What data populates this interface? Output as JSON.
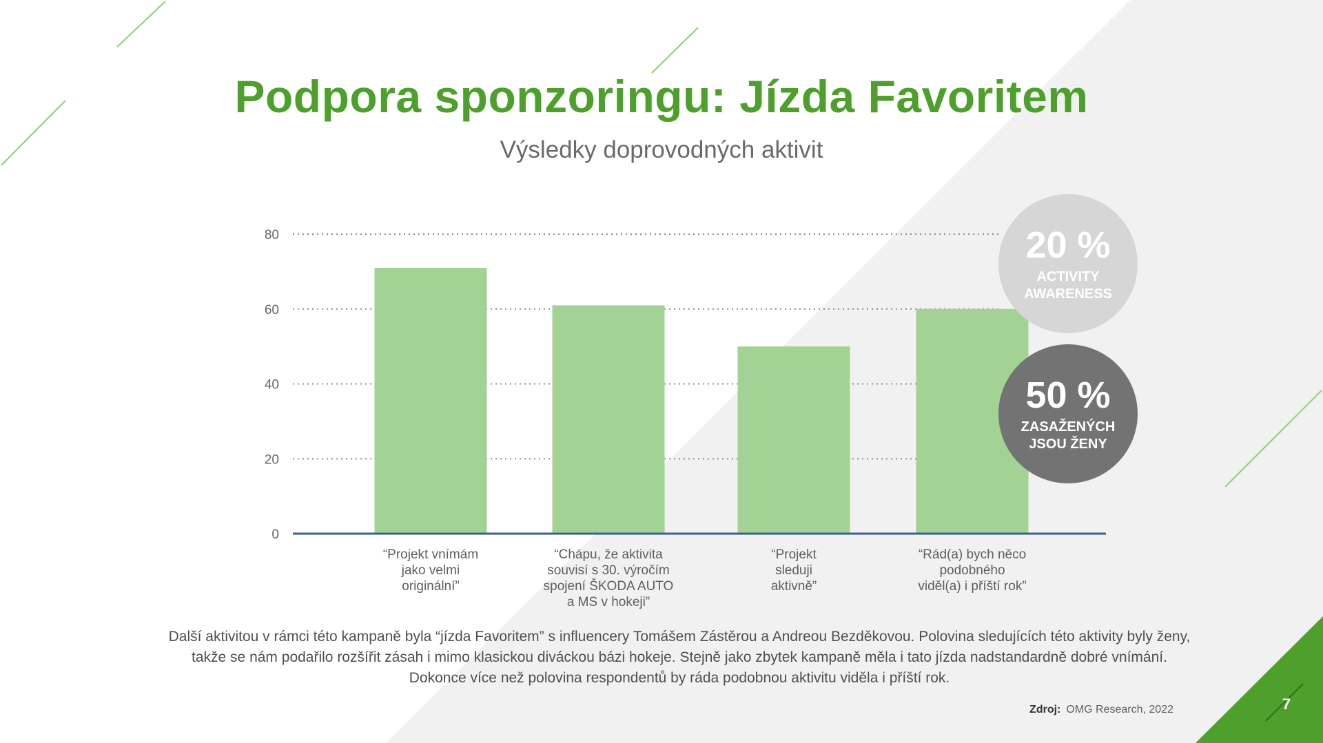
{
  "slide": {
    "title": "Podpora sponzoringu: Jízda Favoritem",
    "subtitle": "Výsledky doprovodných aktivit",
    "body_text": "Další aktivitou v rámci této kampaně byla “jízda Favoritem” s influencery Tomášem Zástěrou a Andreou Bezděkovou. Polovina sledujících této aktivity byly ženy, takže se nám podařilo rozšířit zásah i mimo klasickou diváckou bázi hokeje. Stejně jako zbytek kampaně měla i tato jízda nadstandardně dobré vnímání. Dokonce více než polovina respondentů by ráda podobnou aktivitu viděla i příští rok.",
    "source_label": "Zdroj:",
    "source_value": "OMG Research, 2022",
    "page_number": "7"
  },
  "badges": [
    {
      "value": "20 %",
      "label_line1": "ACTIVITY",
      "label_line2": "AWARENESS",
      "color": "#d6d6d6"
    },
    {
      "value": "50 %",
      "label_line1": "ZASAŽENÝCH",
      "label_line2": "JSOU ŽENY",
      "color": "#737373"
    }
  ],
  "colors": {
    "brand_green": "#4da02b",
    "bar_green": "#a3d394",
    "axis_blue": "#3f5f8f",
    "grid": "#8a8a8a"
  },
  "chart_data": {
    "type": "bar",
    "categories": [
      [
        "“Projekt vnímám",
        "jako velmi",
        "originální”"
      ],
      [
        "“Chápu, že aktivita",
        "souvisí s 30. výročím",
        "spojení ŠKODA AUTO",
        "a MS v hokeji”"
      ],
      [
        "“Projekt",
        "sleduji",
        "aktivně”"
      ],
      [
        "“Rád(a) bych něco",
        "podobného",
        "viděl(a) i příští rok”"
      ]
    ],
    "values": [
      71,
      61,
      50,
      60
    ],
    "yticks": [
      0,
      20,
      40,
      60,
      80
    ],
    "ylim": [
      0,
      80
    ],
    "grid": true,
    "legend": "none"
  }
}
